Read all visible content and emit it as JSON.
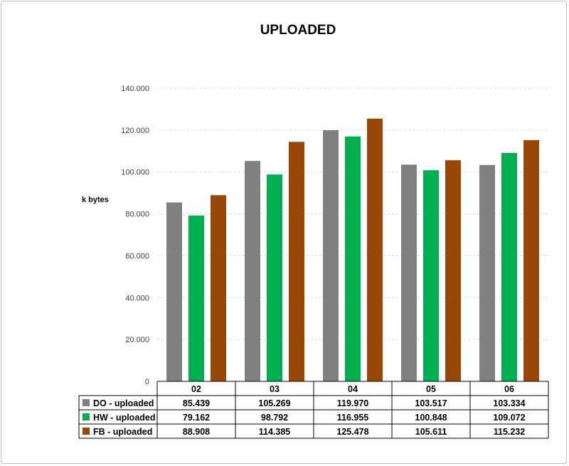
{
  "chart_data": {
    "type": "bar",
    "title": "UPLOADED",
    "ylabel": "k bytes",
    "xlabel": "",
    "ylim": [
      0,
      140000
    ],
    "yticks": [
      0,
      20000,
      40000,
      60000,
      80000,
      100000,
      120000,
      140000
    ],
    "ytick_labels": [
      "0",
      "20.000",
      "40.000",
      "60.000",
      "80.000",
      "100.000",
      "120.000",
      "140.000"
    ],
    "grid": true,
    "legend": "data-table-bottom",
    "categories": [
      "02",
      "03",
      "04",
      "05",
      "06"
    ],
    "series": [
      {
        "name": "DO - uploaded",
        "color": "#808080",
        "values": [
          85439,
          105269,
          119970,
          103517,
          103334
        ],
        "labels": [
          "85.439",
          "105.269",
          "119.970",
          "103.517",
          "103.334"
        ]
      },
      {
        "name": "HW - uploaded",
        "color": "#00b050",
        "values": [
          79162,
          98792,
          116955,
          100848,
          109072
        ],
        "labels": [
          "79.162",
          "98.792",
          "116.955",
          "100.848",
          "109.072"
        ]
      },
      {
        "name": "FB - uploaded",
        "color": "#974706",
        "values": [
          88908,
          114385,
          125478,
          105611,
          115232
        ],
        "labels": [
          "88.908",
          "114.385",
          "125.478",
          "105.611",
          "115.232"
        ]
      }
    ]
  }
}
